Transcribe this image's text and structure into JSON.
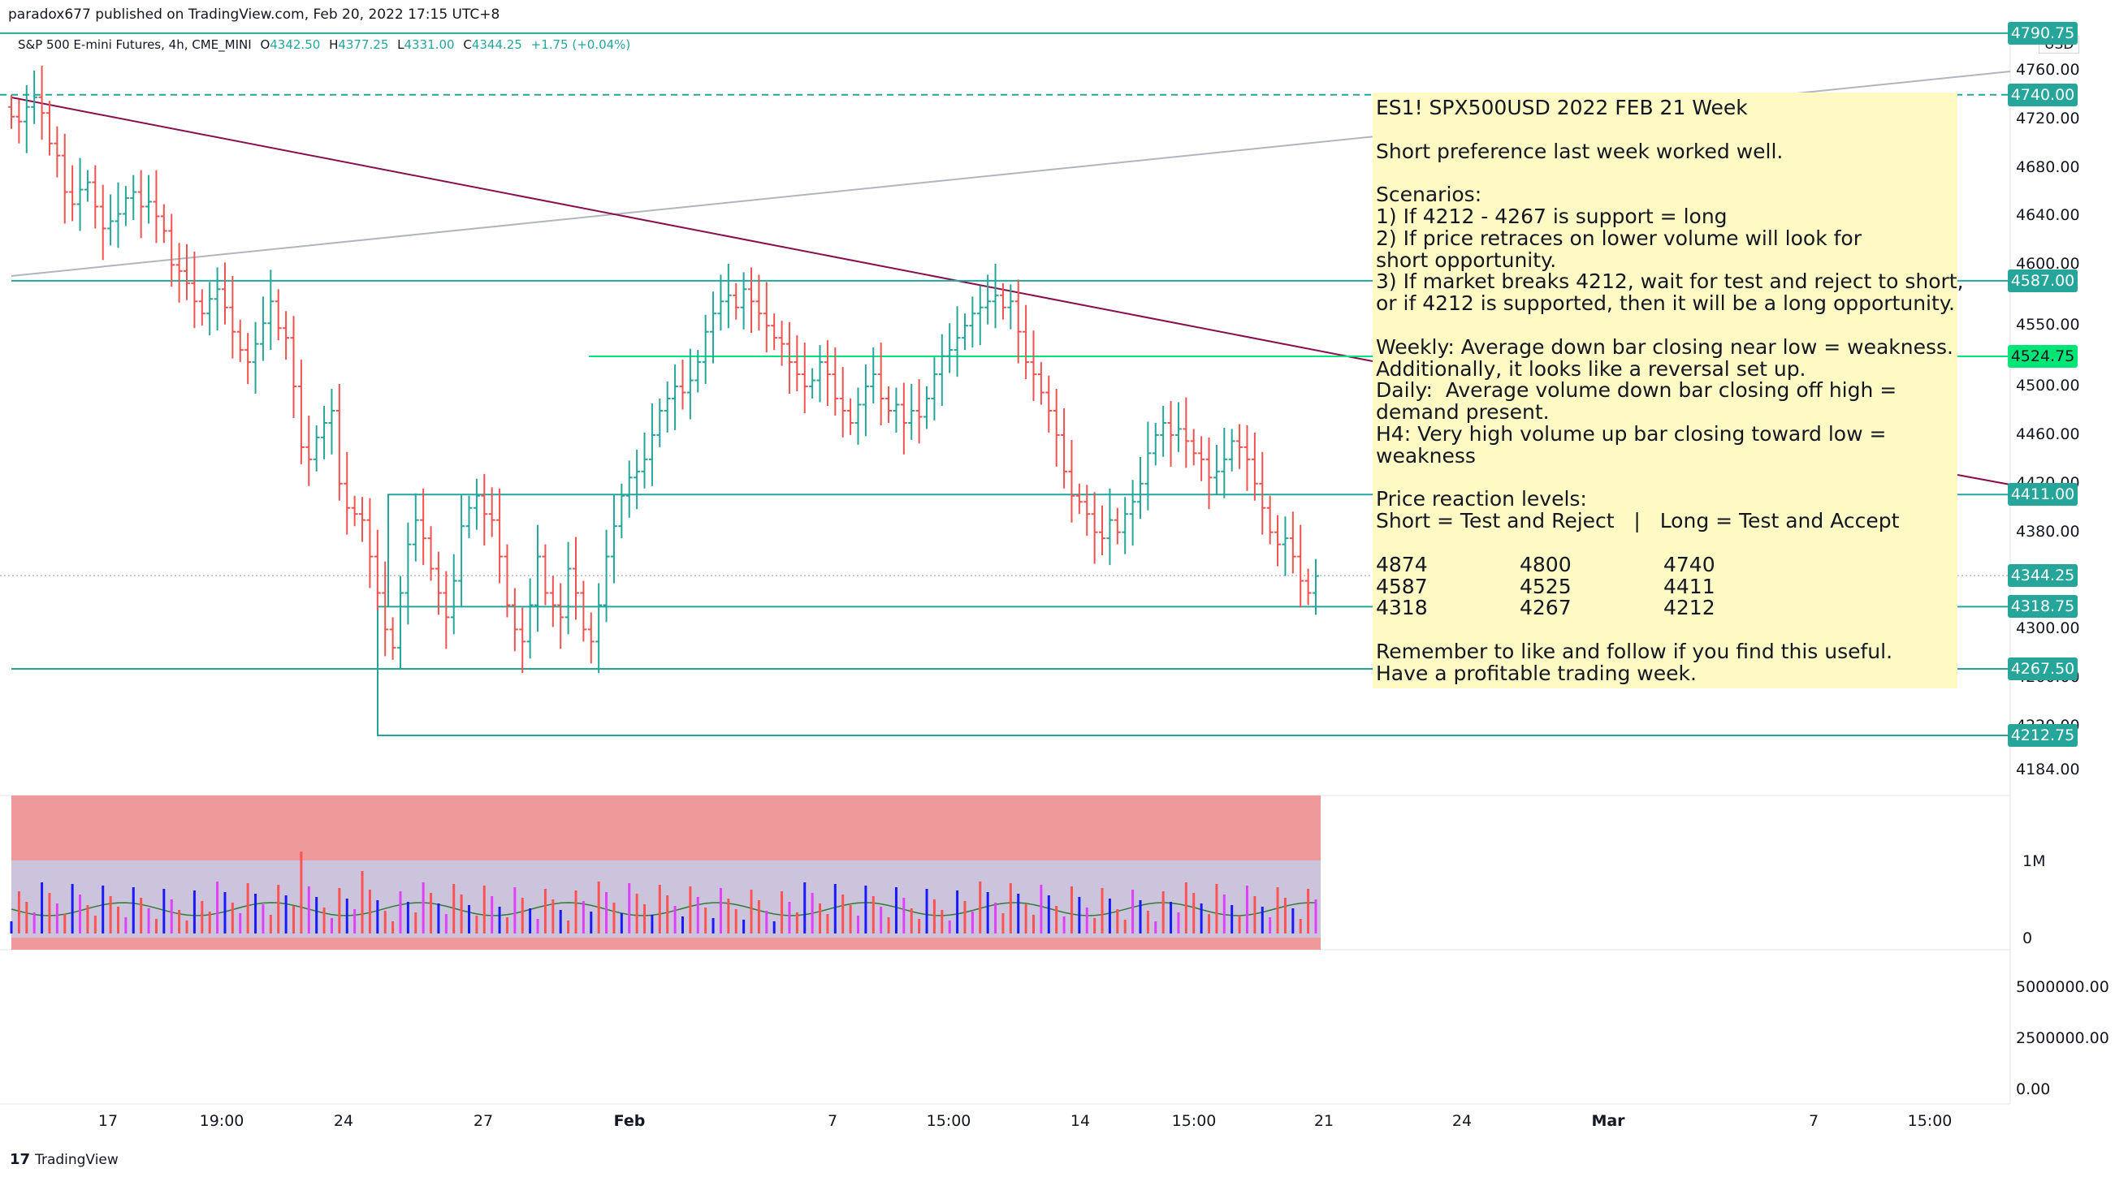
{
  "header": {
    "publisher": "paradox677 published on TradingView.com, Feb 20, 2022 17:15 UTC+8"
  },
  "symbol": {
    "name": "S&P 500 E-mini Futures, 4h, CME_MINI",
    "o_label": "O",
    "o": "4342.50",
    "h_label": "H",
    "h": "4377.25",
    "l_label": "L",
    "l": "4331.00",
    "c_label": "C",
    "c": "4344.25",
    "change": "+1.75 (+0.04%)"
  },
  "currency": "USD",
  "note": {
    "title": "ES1! SPX500USD 2022 FEB 21 Week",
    "line1": "Short preference last week worked well.",
    "scenarios_label": "Scenarios:",
    "s1": "1) If 4212 - 4267 is support = long",
    "s2a": "2) If price retraces on lower volume will look for",
    "s2b": "short opportunity.",
    "s3a": "3) If market breaks 4212, wait for test and reject to short,",
    "s3b": "or if 4212 is supported, then it will be a long opportunity.",
    "weekly": "Weekly: Average down bar closing near low = weakness.",
    "additionally": "Additionally, it looks like a reversal set up.",
    "daily_a": "Daily:  Average volume down bar closing off high =",
    "daily_b": "demand present.",
    "h4_a": "H4: Very high volume up bar closing toward low =",
    "h4_b": "weakness",
    "levels_label": "Price reaction levels:",
    "levels_header": "Short = Test and Reject   |   Long = Test and Accept",
    "levels": [
      [
        "4874",
        "4800",
        "4740"
      ],
      [
        "4587",
        "4525",
        "4411"
      ],
      [
        "4318",
        "4267",
        "4212"
      ]
    ],
    "remember": "Remember to like and follow if you find this useful.",
    "farewell": "Have a profitable trading week."
  },
  "price_tags": [
    {
      "value": "4790.75",
      "color": "#26a69a",
      "price": 4790.75
    },
    {
      "value": "4740.00",
      "color": "#26a69a",
      "price": 4740
    },
    {
      "value": "4587.00",
      "color": "#26a69a",
      "price": 4587
    },
    {
      "value": "4524.75",
      "color": "#00e676",
      "price": 4524.75
    },
    {
      "value": "4411.00",
      "color": "#26a69a",
      "price": 4411
    },
    {
      "value": "4344.25",
      "color": "#26a69a",
      "price": 4344.25
    },
    {
      "value": "4318.75",
      "color": "#26a69a",
      "price": 4318.75
    },
    {
      "value": "4267.50",
      "color": "#26a69a",
      "price": 4267.5
    },
    {
      "value": "4212.75",
      "color": "#26a69a",
      "price": 4212.75
    }
  ],
  "price_axis": [
    "4760.00",
    "4720.00",
    "4680.00",
    "4640.00",
    "4600.00",
    "4550.00",
    "4500.00",
    "4460.00",
    "4420.00",
    "4380.00",
    "4300.00",
    "4260.00",
    "4220.00",
    "4184.00"
  ],
  "volume_axis": [
    "1M",
    "0"
  ],
  "osc_axis": [
    "5000000.00",
    "2500000.00",
    "0.00"
  ],
  "time_axis": [
    "17",
    "19:00",
    "24",
    "27",
    "Feb",
    "7",
    "15:00",
    "14",
    "15:00",
    "21",
    "24",
    "Mar",
    "7",
    "15:00"
  ],
  "footer": {
    "brand": "TradingView"
  },
  "chart_data": {
    "type": "ohlc-bar",
    "title": "S&P 500 E-mini Futures, 4h, CME_MINI",
    "ylim": [
      4170,
      4800
    ],
    "closes": [
      4722,
      4718,
      4730,
      4738,
      4725,
      4700,
      4690,
      4660,
      4650,
      4662,
      4668,
      4648,
      4630,
      4636,
      4642,
      4655,
      4660,
      4648,
      4652,
      4640,
      4628,
      4600,
      4595,
      4585,
      4570,
      4560,
      4572,
      4580,
      4565,
      4545,
      4530,
      4520,
      4535,
      4552,
      4570,
      4548,
      4540,
      4500,
      4450,
      4440,
      4458,
      4470,
      4480,
      4420,
      4400,
      4395,
      4390,
      4360,
      4330,
      4300,
      4285,
      4330,
      4370,
      4390,
      4375,
      4350,
      4330,
      4310,
      4340,
      4385,
      4400,
      4410,
      4395,
      4390,
      4360,
      4320,
      4300,
      4290,
      4320,
      4360,
      4330,
      4320,
      4310,
      4350,
      4330,
      4300,
      4290,
      4320,
      4360,
      4385,
      4410,
      4425,
      4430,
      4440,
      4460,
      4480,
      4490,
      4500,
      4495,
      4505,
      4520,
      4545,
      4560,
      4570,
      4575,
      4565,
      4580,
      4570,
      4560,
      4550,
      4540,
      4535,
      4520,
      4510,
      4500,
      4505,
      4520,
      4510,
      4490,
      4480,
      4470,
      4485,
      4500,
      4510,
      4490,
      4480,
      4485,
      4470,
      4480,
      4475,
      4490,
      4510,
      4525,
      4530,
      4540,
      4550,
      4560,
      4565,
      4570,
      4575,
      4565,
      4570,
      4545,
      4520,
      4510,
      4495,
      4480,
      4460,
      4430,
      4410,
      4405,
      4395,
      4380,
      4375,
      4390,
      4380,
      4395,
      4405,
      4420,
      4445,
      4460,
      4470,
      4460,
      4465,
      4455,
      4445,
      4440,
      4425,
      4430,
      4440,
      4455,
      4450,
      4440,
      4420,
      4400,
      4380,
      4370,
      4375,
      4360,
      4340,
      4330,
      4344
    ]
  }
}
